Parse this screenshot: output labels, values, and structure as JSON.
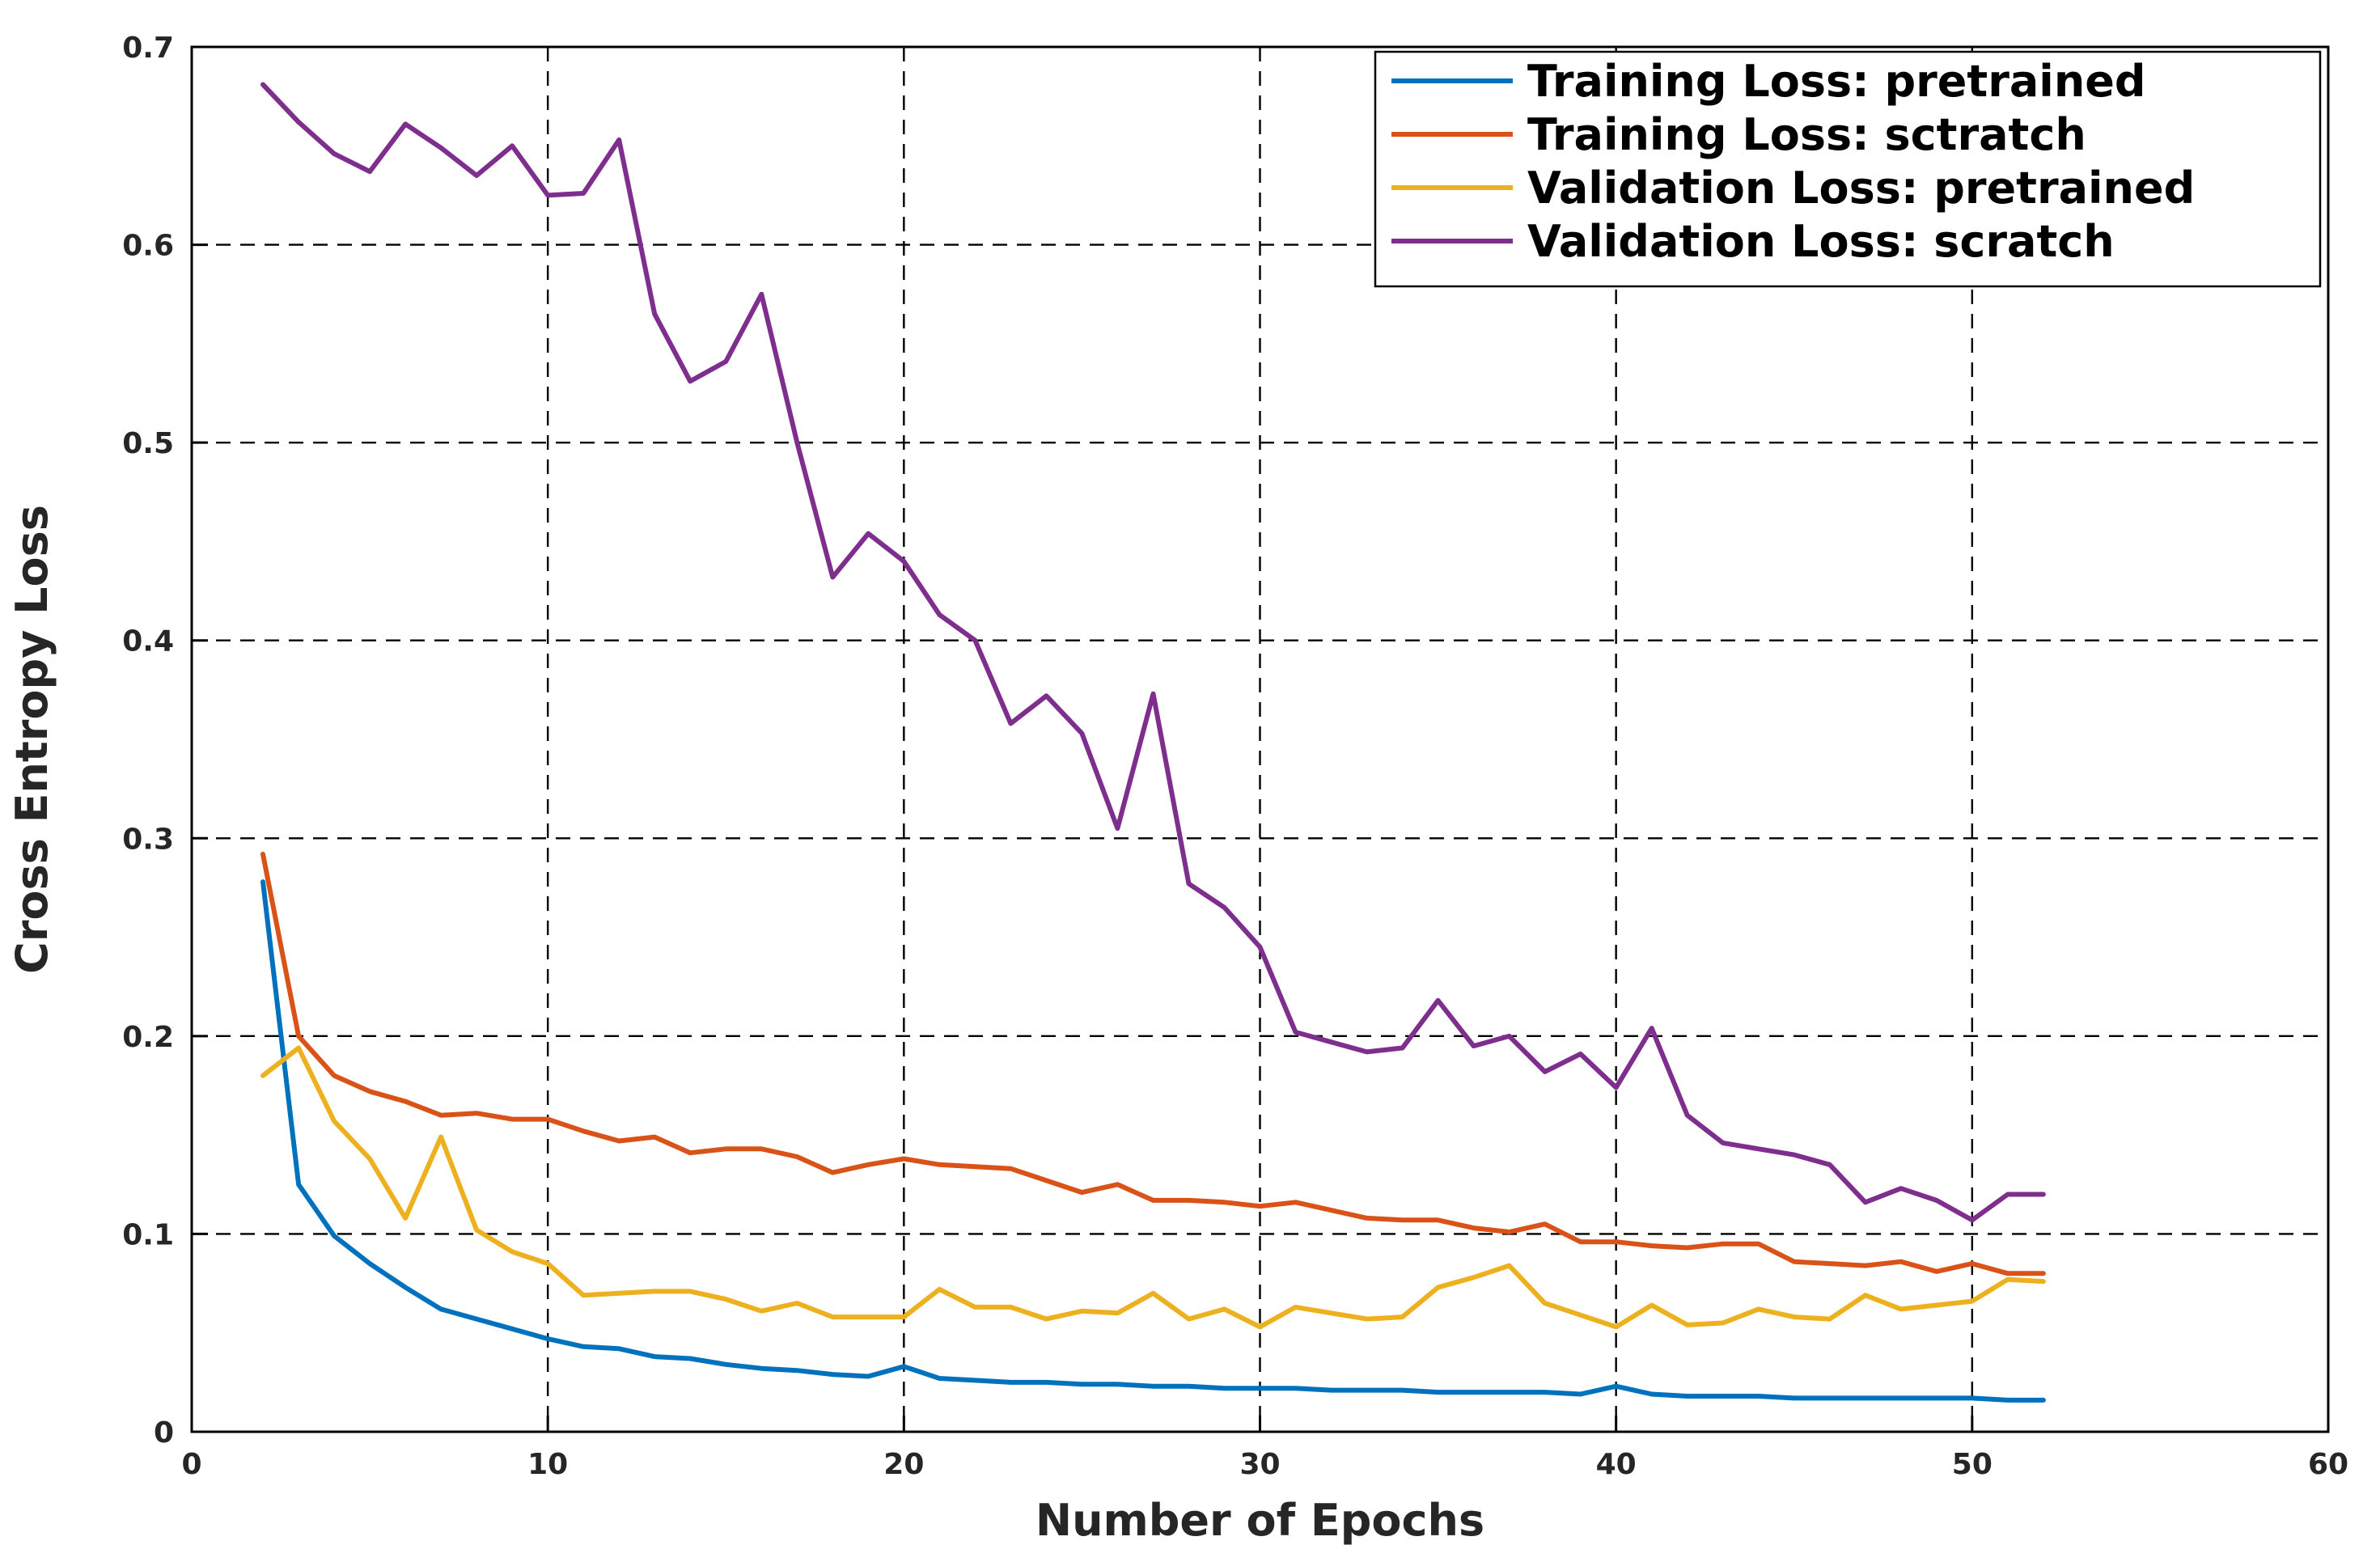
{
  "chart_data": {
    "type": "line",
    "title": "",
    "xlabel": "Number of Epochs",
    "ylabel": "Cross Entropy Loss",
    "xlim": [
      0,
      60
    ],
    "ylim": [
      0,
      0.7
    ],
    "grid": true,
    "legend_position": "top-right",
    "x_ticks": [
      0,
      10,
      20,
      30,
      40,
      50,
      60
    ],
    "x_tick_labels": [
      "0",
      "10",
      "20",
      "30",
      "40",
      "50",
      "60"
    ],
    "y_ticks": [
      0,
      0.1,
      0.2,
      0.3,
      0.4,
      0.5,
      0.6,
      0.7
    ],
    "y_tick_labels": [
      "0",
      "0.1",
      "0.2",
      "0.3",
      "0.4",
      "0.5",
      "0.6",
      "0.7"
    ],
    "x": [
      2,
      3,
      4,
      5,
      6,
      7,
      8,
      9,
      10,
      11,
      12,
      13,
      14,
      15,
      16,
      17,
      18,
      19,
      20,
      21,
      22,
      23,
      24,
      25,
      26,
      27,
      28,
      29,
      30,
      31,
      32,
      33,
      34,
      35,
      36,
      37,
      38,
      39,
      40,
      41,
      42,
      43,
      44,
      45,
      46,
      47,
      48,
      49,
      50,
      51,
      52
    ],
    "series": [
      {
        "name": "Training Loss: pretrained",
        "color": "#0072BD",
        "values": [
          0.278,
          0.125,
          0.099,
          0.085,
          0.073,
          0.062,
          0.057,
          0.052,
          0.047,
          0.043,
          0.042,
          0.038,
          0.037,
          0.034,
          0.032,
          0.031,
          0.029,
          0.028,
          0.033,
          0.027,
          0.026,
          0.025,
          0.025,
          0.024,
          0.024,
          0.023,
          0.023,
          0.022,
          0.022,
          0.022,
          0.021,
          0.021,
          0.021,
          0.02,
          0.02,
          0.02,
          0.02,
          0.019,
          0.023,
          0.019,
          0.018,
          0.018,
          0.018,
          0.017,
          0.017,
          0.017,
          0.017,
          0.017,
          0.017,
          0.016,
          0.016
        ]
      },
      {
        "name": "Training Loss: sctratch",
        "color": "#D95319",
        "values": [
          0.292,
          0.2,
          0.18,
          0.172,
          0.167,
          0.16,
          0.161,
          0.158,
          0.158,
          0.152,
          0.147,
          0.149,
          0.141,
          0.143,
          0.143,
          0.139,
          0.131,
          0.135,
          0.138,
          0.135,
          0.134,
          0.133,
          0.127,
          0.121,
          0.125,
          0.117,
          0.117,
          0.116,
          0.114,
          0.116,
          0.112,
          0.108,
          0.107,
          0.107,
          0.103,
          0.101,
          0.105,
          0.096,
          0.096,
          0.094,
          0.093,
          0.095,
          0.095,
          0.086,
          0.085,
          0.084,
          0.086,
          0.081,
          0.085,
          0.08,
          0.08
        ]
      },
      {
        "name": "Validation Loss: pretrained",
        "color": "#EDB120",
        "values": [
          0.18,
          0.194,
          0.157,
          0.138,
          0.108,
          0.149,
          0.102,
          0.091,
          0.085,
          0.069,
          0.07,
          0.071,
          0.071,
          0.067,
          0.061,
          0.065,
          0.058,
          0.058,
          0.058,
          0.072,
          0.063,
          0.063,
          0.057,
          0.061,
          0.06,
          0.07,
          0.057,
          0.062,
          0.053,
          0.063,
          0.06,
          0.057,
          0.058,
          0.073,
          0.078,
          0.084,
          0.065,
          0.059,
          0.053,
          0.064,
          0.054,
          0.055,
          0.062,
          0.058,
          0.057,
          0.069,
          0.062,
          0.064,
          0.066,
          0.077,
          0.076
        ]
      },
      {
        "name": "Validation Loss: scratch",
        "color": "#7E2F8E",
        "values": [
          0.681,
          0.662,
          0.646,
          0.637,
          0.661,
          0.649,
          0.635,
          0.65,
          0.625,
          0.626,
          0.653,
          0.565,
          0.531,
          0.541,
          0.575,
          0.5,
          0.432,
          0.454,
          0.44,
          0.413,
          0.4,
          0.358,
          0.372,
          0.353,
          0.305,
          0.373,
          0.277,
          0.265,
          0.245,
          0.202,
          0.197,
          0.192,
          0.194,
          0.218,
          0.195,
          0.2,
          0.182,
          0.191,
          0.174,
          0.204,
          0.16,
          0.146,
          0.143,
          0.14,
          0.135,
          0.116,
          0.123,
          0.117,
          0.107,
          0.12,
          0.12
        ]
      }
    ]
  }
}
